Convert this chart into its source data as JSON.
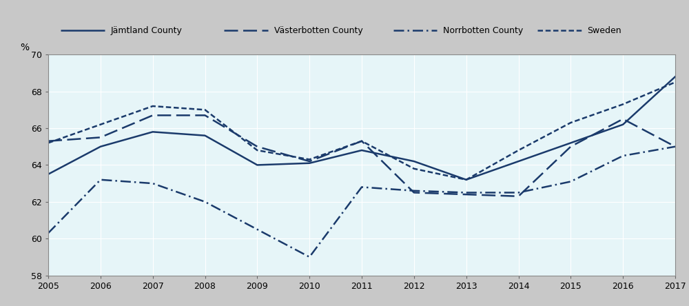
{
  "years": [
    2005,
    2006,
    2007,
    2008,
    2009,
    2010,
    2011,
    2012,
    2013,
    2014,
    2015,
    2016,
    2017
  ],
  "jamtland": [
    63.5,
    65.0,
    65.8,
    65.6,
    64.0,
    64.1,
    64.8,
    64.2,
    63.2,
    64.2,
    65.2,
    66.2,
    68.8
  ],
  "vasterbotten": [
    65.3,
    65.5,
    66.7,
    66.7,
    65.0,
    64.2,
    65.3,
    62.5,
    62.4,
    62.3,
    65.0,
    66.5,
    65.0
  ],
  "norrbotten": [
    60.3,
    63.2,
    63.0,
    62.0,
    60.5,
    59.0,
    62.8,
    62.6,
    62.5,
    62.5,
    63.1,
    64.5,
    65.0
  ],
  "sweden": [
    65.2,
    66.2,
    67.2,
    67.0,
    64.8,
    64.3,
    65.3,
    63.8,
    63.2,
    64.8,
    66.3,
    67.3,
    68.5
  ],
  "line_color": "#1a3a6b",
  "plot_bg": "#e6f5f8",
  "legend_bg": "#c8c8c8",
  "fig_bg": "#c8c8c8",
  "grid_color": "#ffffff",
  "ylim": [
    58,
    70
  ],
  "yticks": [
    58,
    60,
    62,
    64,
    66,
    68,
    70
  ],
  "xticks": [
    2005,
    2006,
    2007,
    2008,
    2009,
    2010,
    2011,
    2012,
    2013,
    2014,
    2015,
    2016,
    2017
  ],
  "ylabel": "%",
  "legend_labels": [
    "Jämtland County",
    "Västerbotten County",
    "Norrbotten County",
    "Sweden"
  ],
  "lw": 1.8
}
